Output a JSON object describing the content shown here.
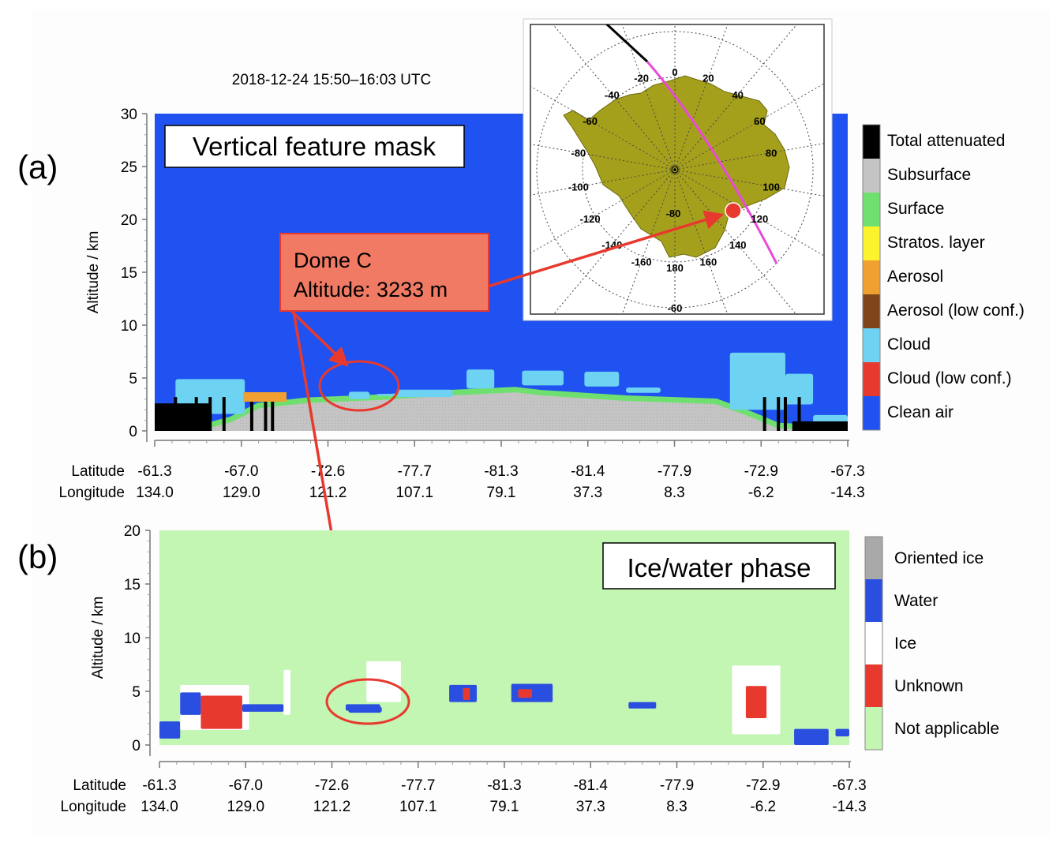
{
  "chart_data": [
    {
      "type": "heatmap",
      "panel_label": "(a)",
      "title": "2018-12-24 15:50–16:03 UTC",
      "box_label": "Vertical feature mask",
      "ylabel": "Altitude / km",
      "ylim": [
        0,
        30
      ],
      "yticks": [
        0,
        5,
        10,
        15,
        20,
        25,
        30
      ],
      "x_axis_names": [
        "Latitude",
        "Longitude"
      ],
      "latitude_ticks": [
        "-61.3",
        "-67.0",
        "-72.6",
        "-77.7",
        "-81.3",
        "-81.4",
        "-77.9",
        "-72.9",
        "-67.3"
      ],
      "longitude_ticks": [
        "134.0",
        "129.0",
        "121.2",
        "107.1",
        "79.1",
        "37.3",
        "8.3",
        "-6.2",
        "-14.3"
      ],
      "legend": [
        {
          "label": "Total attenuated",
          "color": "#000000"
        },
        {
          "label": "Subsurface",
          "color": "#c4c4c4"
        },
        {
          "label": "Surface",
          "color": "#6fe06f"
        },
        {
          "label": "Stratos. layer",
          "color": "#fbf32c"
        },
        {
          "label": "Aerosol",
          "color": "#f0a030"
        },
        {
          "label": "Aerosol (low conf.)",
          "color": "#80461b"
        },
        {
          "label": "Cloud",
          "color": "#6ed3f2"
        },
        {
          "label": "Cloud (low conf.)",
          "color": "#e8392e"
        },
        {
          "label": "Clean air",
          "color": "#1f52f0"
        }
      ],
      "annotation": {
        "lines": [
          "Dome C",
          "Altitude: 3233 m"
        ],
        "color": "#f07a64"
      },
      "surface_profile": [
        {
          "x": 0.0,
          "alt": 0.3
        },
        {
          "x": 0.07,
          "alt": 0.4
        },
        {
          "x": 0.11,
          "alt": 1.1
        },
        {
          "x": 0.15,
          "alt": 2.4
        },
        {
          "x": 0.22,
          "alt": 2.9
        },
        {
          "x": 0.33,
          "alt": 3.2
        },
        {
          "x": 0.42,
          "alt": 3.6
        },
        {
          "x": 0.52,
          "alt": 3.9
        },
        {
          "x": 0.56,
          "alt": 3.6
        },
        {
          "x": 0.68,
          "alt": 3.1
        },
        {
          "x": 0.81,
          "alt": 2.8
        },
        {
          "x": 0.86,
          "alt": 1.6
        },
        {
          "x": 0.9,
          "alt": 0.5
        },
        {
          "x": 1.0,
          "alt": 0.2
        }
      ],
      "cloud_features": [
        {
          "x0": 0.03,
          "x1": 0.13,
          "bottom": 1.6,
          "top": 4.9
        },
        {
          "x0": 0.35,
          "x1": 0.43,
          "bottom": 3.2,
          "top": 3.9
        },
        {
          "x0": 0.28,
          "x1": 0.31,
          "bottom": 3.0,
          "top": 3.7
        },
        {
          "x0": 0.32,
          "x1": 0.36,
          "bottom": 3.3,
          "top": 3.5
        },
        {
          "x0": 0.45,
          "x1": 0.49,
          "bottom": 4.0,
          "top": 5.8
        },
        {
          "x0": 0.53,
          "x1": 0.59,
          "bottom": 4.3,
          "top": 5.7
        },
        {
          "x0": 0.62,
          "x1": 0.67,
          "bottom": 4.2,
          "top": 5.6
        },
        {
          "x0": 0.68,
          "x1": 0.73,
          "bottom": 3.6,
          "top": 4.1
        },
        {
          "x0": 0.83,
          "x1": 0.91,
          "bottom": 2.0,
          "top": 7.4
        },
        {
          "x0": 0.91,
          "x1": 0.95,
          "bottom": 2.5,
          "top": 5.4
        },
        {
          "x0": 0.95,
          "x1": 1.0,
          "bottom": 0.5,
          "top": 1.5
        }
      ],
      "attenuated_columns": [
        0.03,
        0.06,
        0.08,
        0.1,
        0.14,
        0.16,
        0.17,
        0.88,
        0.9,
        0.91,
        0.93
      ]
    },
    {
      "type": "heatmap",
      "panel_label": "(b)",
      "box_label": "Ice/water phase",
      "ylabel": "Altitude / km",
      "ylim": [
        0,
        20
      ],
      "yticks": [
        0,
        5,
        10,
        15,
        20
      ],
      "x_axis_names": [
        "Latitude",
        "Longitude"
      ],
      "latitude_ticks": [
        "-61.3",
        "-67.0",
        "-72.6",
        "-77.7",
        "-81.3",
        "-81.4",
        "-77.9",
        "-72.9",
        "-67.3"
      ],
      "longitude_ticks": [
        "134.0",
        "129.0",
        "121.2",
        "107.1",
        "79.1",
        "37.3",
        "8.3",
        "-6.2",
        "-14.3"
      ],
      "legend": [
        {
          "label": "Oriented ice",
          "color": "#a9a9a9"
        },
        {
          "label": "Water",
          "color": "#2a4fe0"
        },
        {
          "label": "Ice",
          "color": "#ffffff"
        },
        {
          "label": "Unknown",
          "color": "#e8392e"
        },
        {
          "label": "Not applicable",
          "color": "#c3f5b3"
        }
      ],
      "phase_features": [
        {
          "phase": "Water",
          "x0": 0.0,
          "x1": 0.03,
          "bottom": 0.6,
          "top": 2.2
        },
        {
          "phase": "Ice",
          "x0": 0.03,
          "x1": 0.13,
          "bottom": 1.4,
          "top": 5.6
        },
        {
          "phase": "Water",
          "x0": 0.03,
          "x1": 0.06,
          "bottom": 2.8,
          "top": 4.9
        },
        {
          "phase": "Unknown",
          "x0": 0.06,
          "x1": 0.12,
          "bottom": 1.5,
          "top": 4.6
        },
        {
          "phase": "Water",
          "x0": 0.12,
          "x1": 0.18,
          "bottom": 3.1,
          "top": 3.8
        },
        {
          "phase": "Ice",
          "x0": 0.18,
          "x1": 0.19,
          "bottom": 2.8,
          "top": 7.0
        },
        {
          "phase": "Water",
          "x0": 0.27,
          "x1": 0.32,
          "bottom": 3.2,
          "top": 3.8
        },
        {
          "phase": "Ice",
          "x0": 0.3,
          "x1": 0.35,
          "bottom": 4.0,
          "top": 7.8
        },
        {
          "phase": "Water",
          "x0": 0.42,
          "x1": 0.46,
          "bottom": 4.0,
          "top": 5.6
        },
        {
          "phase": "Unknown",
          "x0": 0.44,
          "x1": 0.45,
          "bottom": 4.2,
          "top": 5.3
        },
        {
          "phase": "Water",
          "x0": 0.51,
          "x1": 0.57,
          "bottom": 4.0,
          "top": 5.7
        },
        {
          "phase": "Unknown",
          "x0": 0.52,
          "x1": 0.54,
          "bottom": 4.4,
          "top": 5.2
        },
        {
          "phase": "Water",
          "x0": 0.68,
          "x1": 0.72,
          "bottom": 3.4,
          "top": 4.0
        },
        {
          "phase": "Ice",
          "x0": 0.83,
          "x1": 0.9,
          "bottom": 1.0,
          "top": 7.4
        },
        {
          "phase": "Unknown",
          "x0": 0.85,
          "x1": 0.88,
          "bottom": 2.5,
          "top": 5.5
        },
        {
          "phase": "Water",
          "x0": 0.92,
          "x1": 0.97,
          "bottom": 0.0,
          "top": 1.5
        },
        {
          "phase": "Water",
          "x0": 0.98,
          "x1": 1.0,
          "bottom": 0.8,
          "top": 1.5
        }
      ],
      "highlight": {
        "x0": 0.26,
        "x1": 0.32,
        "alt": 3.3
      }
    },
    {
      "type": "map",
      "projection": "south polar stereographic",
      "meridian_labels": [
        "0",
        "20",
        "40",
        "60",
        "80",
        "100",
        "120",
        "140",
        "160",
        "180",
        "-160",
        "-140",
        "-120",
        "-100",
        "-80",
        "-60",
        "-40",
        "-20"
      ],
      "latitude_label": "-60",
      "inner_latitude_label": "-80",
      "colors": {
        "land": "#a5a01c",
        "track": "#e84ad8",
        "track_north": "#000000",
        "marker": "#e8392e"
      }
    }
  ]
}
